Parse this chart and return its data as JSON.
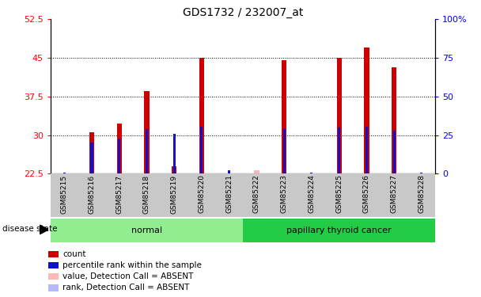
{
  "title": "GDS1732 / 232007_at",
  "samples": [
    "GSM85215",
    "GSM85216",
    "GSM85217",
    "GSM85218",
    "GSM85219",
    "GSM85220",
    "GSM85221",
    "GSM85222",
    "GSM85223",
    "GSM85224",
    "GSM85225",
    "GSM85226",
    "GSM85227",
    "GSM85228"
  ],
  "red_values": [
    22.6,
    30.6,
    32.2,
    38.6,
    24.0,
    45.0,
    22.6,
    23.1,
    44.5,
    22.6,
    45.0,
    47.0,
    43.2,
    22.6
  ],
  "blue_values": [
    0.5,
    20.0,
    23.0,
    29.0,
    26.0,
    30.5,
    2.0,
    null,
    29.5,
    0.5,
    30.0,
    30.5,
    28.0,
    0.5
  ],
  "absent_red": [
    false,
    false,
    false,
    false,
    false,
    false,
    false,
    true,
    false,
    false,
    false,
    false,
    false,
    false
  ],
  "absent_blue": [
    false,
    false,
    false,
    false,
    false,
    false,
    false,
    true,
    false,
    false,
    false,
    false,
    false,
    false
  ],
  "normal_samples": [
    "GSM85215",
    "GSM85216",
    "GSM85217",
    "GSM85218",
    "GSM85219",
    "GSM85220",
    "GSM85221"
  ],
  "cancer_samples": [
    "GSM85222",
    "GSM85223",
    "GSM85224",
    "GSM85225",
    "GSM85226",
    "GSM85227",
    "GSM85228"
  ],
  "ymin": 22.5,
  "ymax": 52.5,
  "yticks_left": [
    22.5,
    30,
    37.5,
    45,
    52.5
  ],
  "yticks_right": [
    0,
    25,
    50,
    75,
    100
  ],
  "red_color": "#cc0000",
  "blue_color": "#1111cc",
  "absent_red_color": "#ffb8b8",
  "absent_blue_color": "#b8b8ff",
  "normal_bg": "#90ee90",
  "cancer_bg": "#22cc44",
  "xlabels_bg": "#c8c8c8",
  "legend_items": [
    {
      "color": "#cc0000",
      "label": "count"
    },
    {
      "color": "#1111cc",
      "label": "percentile rank within the sample"
    },
    {
      "color": "#ffb8b8",
      "label": "value, Detection Call = ABSENT"
    },
    {
      "color": "#b8b8ff",
      "label": "rank, Detection Call = ABSENT"
    }
  ],
  "title_fontsize": 10,
  "tick_fontsize": 8,
  "label_fontsize": 7,
  "disease_fontsize": 8
}
